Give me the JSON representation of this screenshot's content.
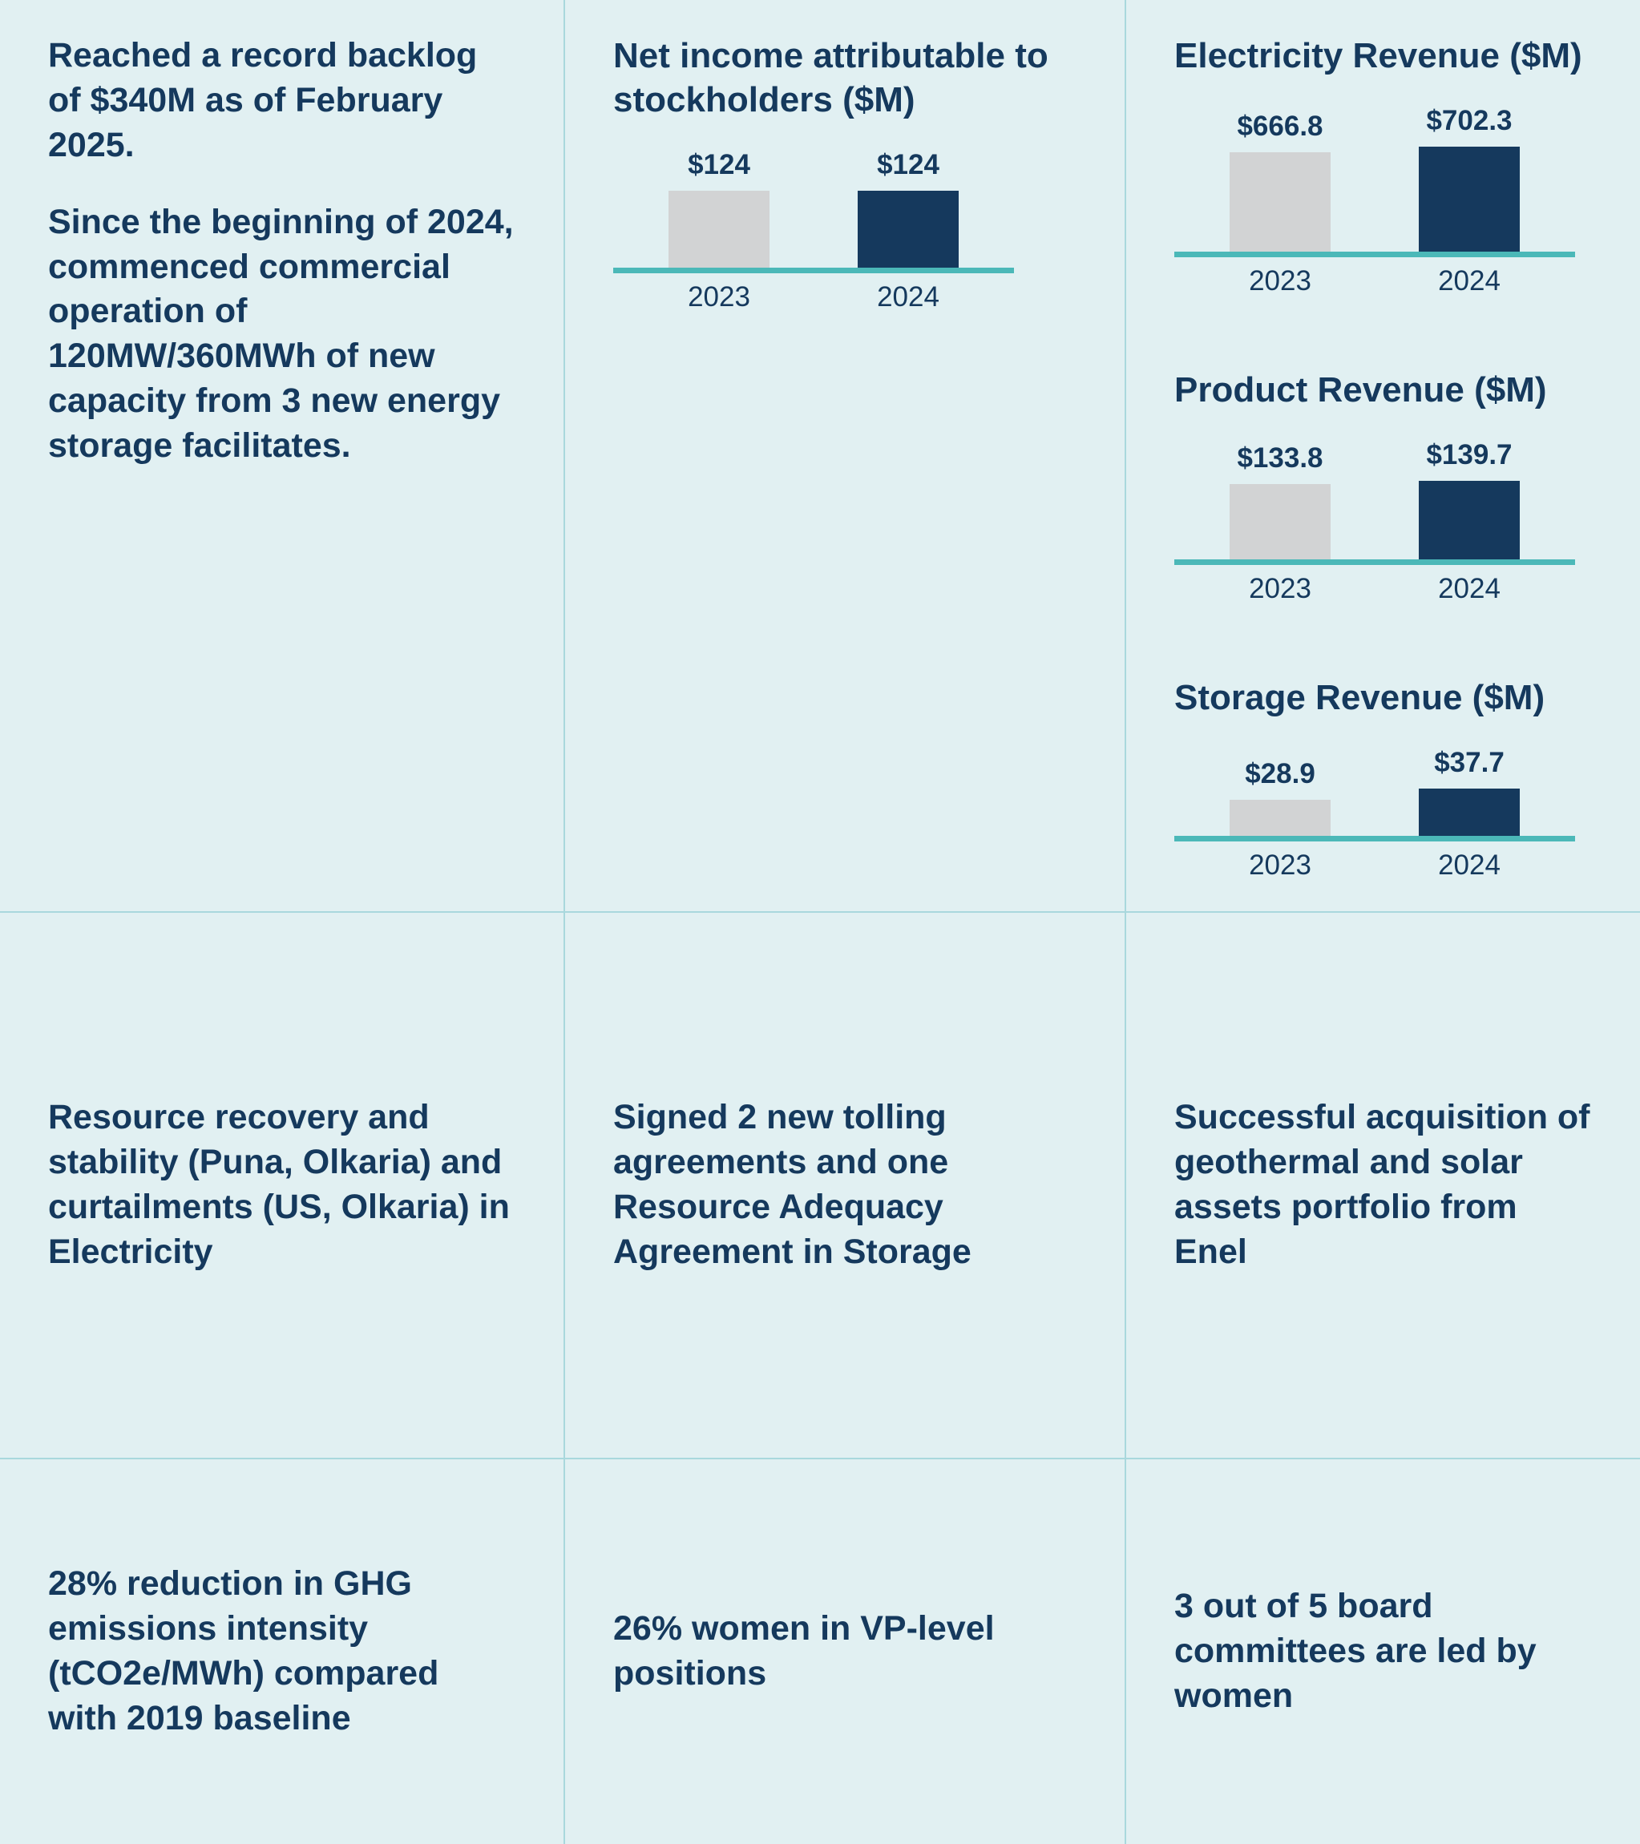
{
  "theme": {
    "background": "#e1f0f2",
    "text_navy": "#15395d",
    "bar_gray": "#d2d3d4",
    "bar_navy": "#15395d",
    "baseline_teal": "#4bb8b8",
    "divider": "#a9d8dd"
  },
  "cells": {
    "backlog": {
      "paragraphs": [
        "Reached a record backlog of $340M as of February 2025.",
        "Since the beginning of 2024, commenced commercial operation of 120MW/360MWh of new capacity from 3 new energy storage facilitates."
      ]
    },
    "resource": "Resource recovery and stability (Puna, Olkaria) and curtailments (US, Olkaria) in Electricity",
    "tolling": "Signed 2 new tolling agreements and one Resource Adequacy Agreement in Storage",
    "acquisition": "Successful acquisition of geothermal and solar assets portfolio from Enel",
    "ghg": "28% reduction in GHG emissions intensity (tCO2e/MWh) compared with 2019 baseline",
    "women_vp": "26% women in VP-level positions",
    "board": "3 out of 5 board committees are led by women"
  },
  "chart_data": [
    {
      "type": "bar",
      "title": "Net income attributable to stockholders ($M)",
      "categories": [
        "2023",
        "2024"
      ],
      "values": [
        124,
        124
      ],
      "value_labels": [
        "$124",
        "$124"
      ],
      "colors": [
        "#d2d3d4",
        "#15395d"
      ],
      "ylim": [
        0,
        180
      ],
      "xlabel": "",
      "ylabel": "",
      "grid": false,
      "legend": false
    },
    {
      "type": "bar",
      "title": "Electricity Revenue ($M)",
      "categories": [
        "2023",
        "2024"
      ],
      "values": [
        666.8,
        702.3
      ],
      "value_labels": [
        "$666.8",
        "$702.3"
      ],
      "colors": [
        "#d2d3d4",
        "#15395d"
      ],
      "ylim": [
        0,
        750
      ],
      "xlabel": "",
      "ylabel": "",
      "grid": false,
      "legend": false
    },
    {
      "type": "bar",
      "title": "Product Revenue ($M)",
      "categories": [
        "2023",
        "2024"
      ],
      "values": [
        133.8,
        139.7
      ],
      "value_labels": [
        "$133.8",
        "$139.7"
      ],
      "colors": [
        "#d2d3d4",
        "#15395d"
      ],
      "ylim": [
        0,
        200
      ],
      "xlabel": "",
      "ylabel": "",
      "grid": false,
      "legend": false
    },
    {
      "type": "bar",
      "title": "Storage Revenue ($M)",
      "categories": [
        "2023",
        "2024"
      ],
      "values": [
        28.9,
        37.7
      ],
      "value_labels": [
        "$28.9",
        "$37.7"
      ],
      "colors": [
        "#d2d3d4",
        "#15395d"
      ],
      "ylim": [
        0,
        90
      ],
      "xlabel": "",
      "ylabel": "",
      "grid": false,
      "legend": false
    }
  ]
}
